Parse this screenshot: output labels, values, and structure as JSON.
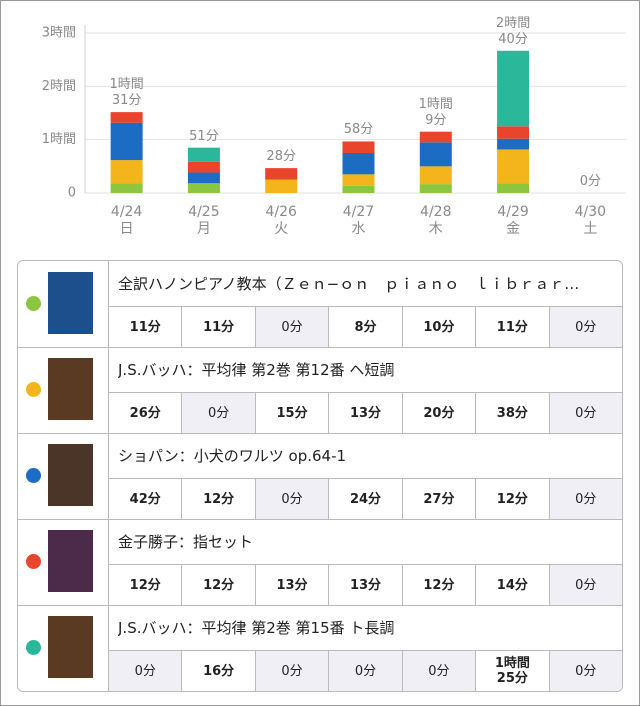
{
  "chart_data": {
    "type": "stacked-bar",
    "categories": [
      "4/24",
      "4/25",
      "4/26",
      "4/27",
      "4/28",
      "4/29",
      "4/30"
    ],
    "weekdays": [
      "日",
      "月",
      "火",
      "水",
      "木",
      "金",
      "土"
    ],
    "ylim": [
      0,
      180
    ],
    "yticks": [
      0,
      {
        "value": 60,
        "label": "1時間"
      },
      {
        "value": 120,
        "label": "2時間"
      },
      {
        "value": 180,
        "label": "3時間"
      }
    ],
    "grid": true,
    "totals": [
      91,
      51,
      28,
      58,
      69,
      160,
      0
    ],
    "total_labels": [
      "1時間\n31分",
      "51分",
      "28分",
      "58分",
      "1時間\n9分",
      "2時間\n40分",
      "0分"
    ],
    "series": [
      {
        "name": "全訳ハノンピアノ教本（Ｚｅｎ−ｏｎ　ｐｉａｎｏ　ｌｉｂｒａｒ…",
        "color": "#8cc63f",
        "values": [
          11,
          11,
          0,
          8,
          10,
          11,
          0
        ],
        "value_labels": [
          "11分",
          "11分",
          "0分",
          "8分",
          "10分",
          "11分",
          "0分"
        ]
      },
      {
        "name": "J.S.バッハ：平均律 第2巻 第12番 ヘ短調",
        "color": "#f4b41c",
        "values": [
          26,
          0,
          15,
          13,
          20,
          38,
          0
        ],
        "value_labels": [
          "26分",
          "0分",
          "15分",
          "13分",
          "20分",
          "38分",
          "0分"
        ]
      },
      {
        "name": "ショパン：小犬のワルツ op.64-1",
        "color": "#1c6cc4",
        "values": [
          42,
          12,
          0,
          24,
          27,
          12,
          0
        ],
        "value_labels": [
          "42分",
          "12分",
          "0分",
          "24分",
          "27分",
          "12分",
          "0分"
        ]
      },
      {
        "name": "金子勝子：指セット",
        "color": "#e8452c",
        "values": [
          12,
          12,
          13,
          13,
          12,
          14,
          0
        ],
        "value_labels": [
          "12分",
          "12分",
          "13分",
          "13分",
          "12分",
          "14分",
          "0分"
        ]
      },
      {
        "name": "J.S.バッハ：平均律 第2巻 第15番 ト長調",
        "color": "#2bb89a",
        "values": [
          0,
          16,
          0,
          0,
          0,
          85,
          0
        ],
        "value_labels": [
          "0分",
          "16分",
          "0分",
          "0分",
          "0分",
          "1時間\n25分",
          "0分"
        ]
      }
    ]
  }
}
